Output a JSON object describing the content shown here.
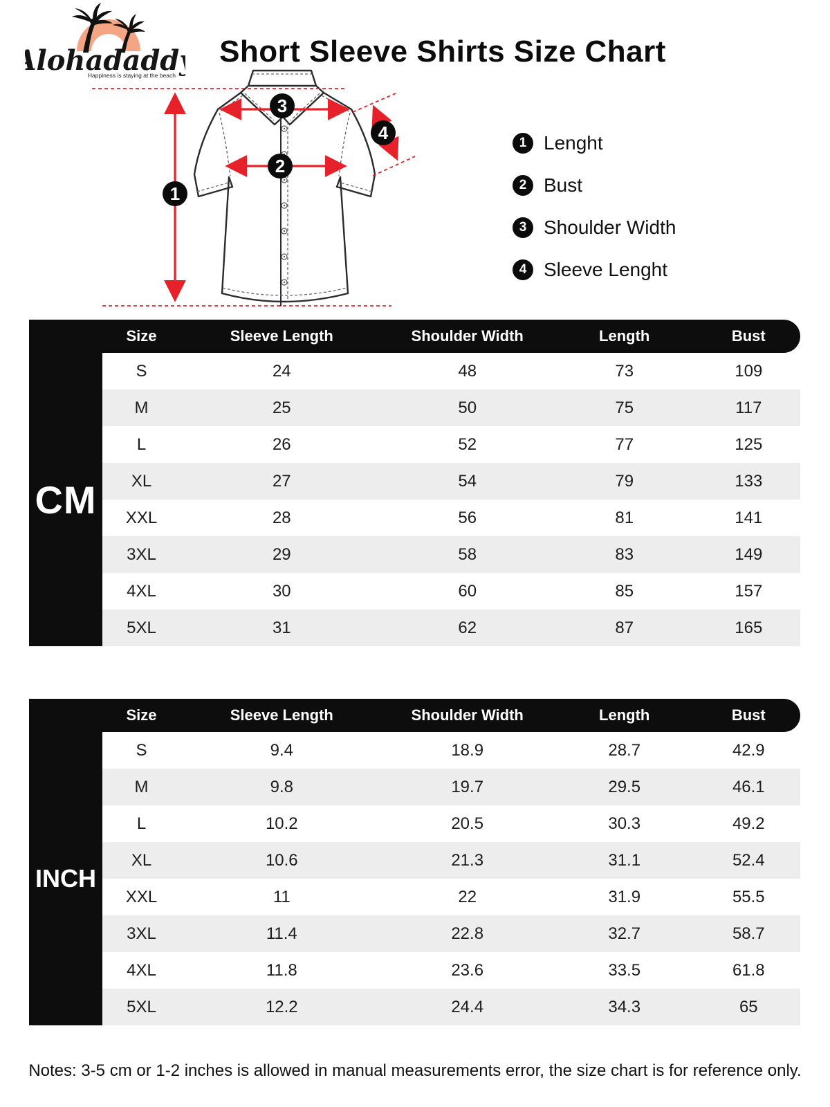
{
  "logo": {
    "brand": "Alohadaddy",
    "tagline": "Happiness is staying at the beach"
  },
  "title": "Short Sleeve Shirts Size Chart",
  "legend": [
    {
      "num": "1",
      "label": "Lenght"
    },
    {
      "num": "2",
      "label": "Bust"
    },
    {
      "num": "3",
      "label": "Shoulder Width"
    },
    {
      "num": "4",
      "label": "Sleeve Lenght"
    }
  ],
  "diagram": {
    "markers": [
      "1",
      "2",
      "3",
      "4"
    ]
  },
  "tables": [
    {
      "unit": "CM",
      "columns": [
        "Size",
        "Sleeve Length",
        "Shoulder Width",
        "Length",
        "Bust"
      ],
      "rows": [
        [
          "S",
          "24",
          "48",
          "73",
          "109"
        ],
        [
          "M",
          "25",
          "50",
          "75",
          "117"
        ],
        [
          "L",
          "26",
          "52",
          "77",
          "125"
        ],
        [
          "XL",
          "27",
          "54",
          "79",
          "133"
        ],
        [
          "XXL",
          "28",
          "56",
          "81",
          "141"
        ],
        [
          "3XL",
          "29",
          "58",
          "83",
          "149"
        ],
        [
          "4XL",
          "30",
          "60",
          "85",
          "157"
        ],
        [
          "5XL",
          "31",
          "62",
          "87",
          "165"
        ]
      ]
    },
    {
      "unit": "INCH",
      "columns": [
        "Size",
        "Sleeve Length",
        "Shoulder Width",
        "Length",
        "Bust"
      ],
      "rows": [
        [
          "S",
          "9.4",
          "18.9",
          "28.7",
          "42.9"
        ],
        [
          "M",
          "9.8",
          "19.7",
          "29.5",
          "46.1"
        ],
        [
          "L",
          "10.2",
          "20.5",
          "30.3",
          "49.2"
        ],
        [
          "XL",
          "10.6",
          "21.3",
          "31.1",
          "52.4"
        ],
        [
          "XXL",
          "11",
          "22",
          "31.9",
          "55.5"
        ],
        [
          "3XL",
          "11.4",
          "22.8",
          "32.7",
          "58.7"
        ],
        [
          "4XL",
          "11.8",
          "23.6",
          "33.5",
          "61.8"
        ],
        [
          "5XL",
          "12.2",
          "24.4",
          "34.3",
          "65"
        ]
      ]
    }
  ],
  "notes": "Notes: 3-5 cm or 1-2 inches is allowed in manual measurements error, the size chart is for reference only.",
  "colors": {
    "accent_red": "#e62129",
    "logo_orange": "#f4a583",
    "black": "#0d0d0d",
    "row_alt": "#ededed"
  }
}
